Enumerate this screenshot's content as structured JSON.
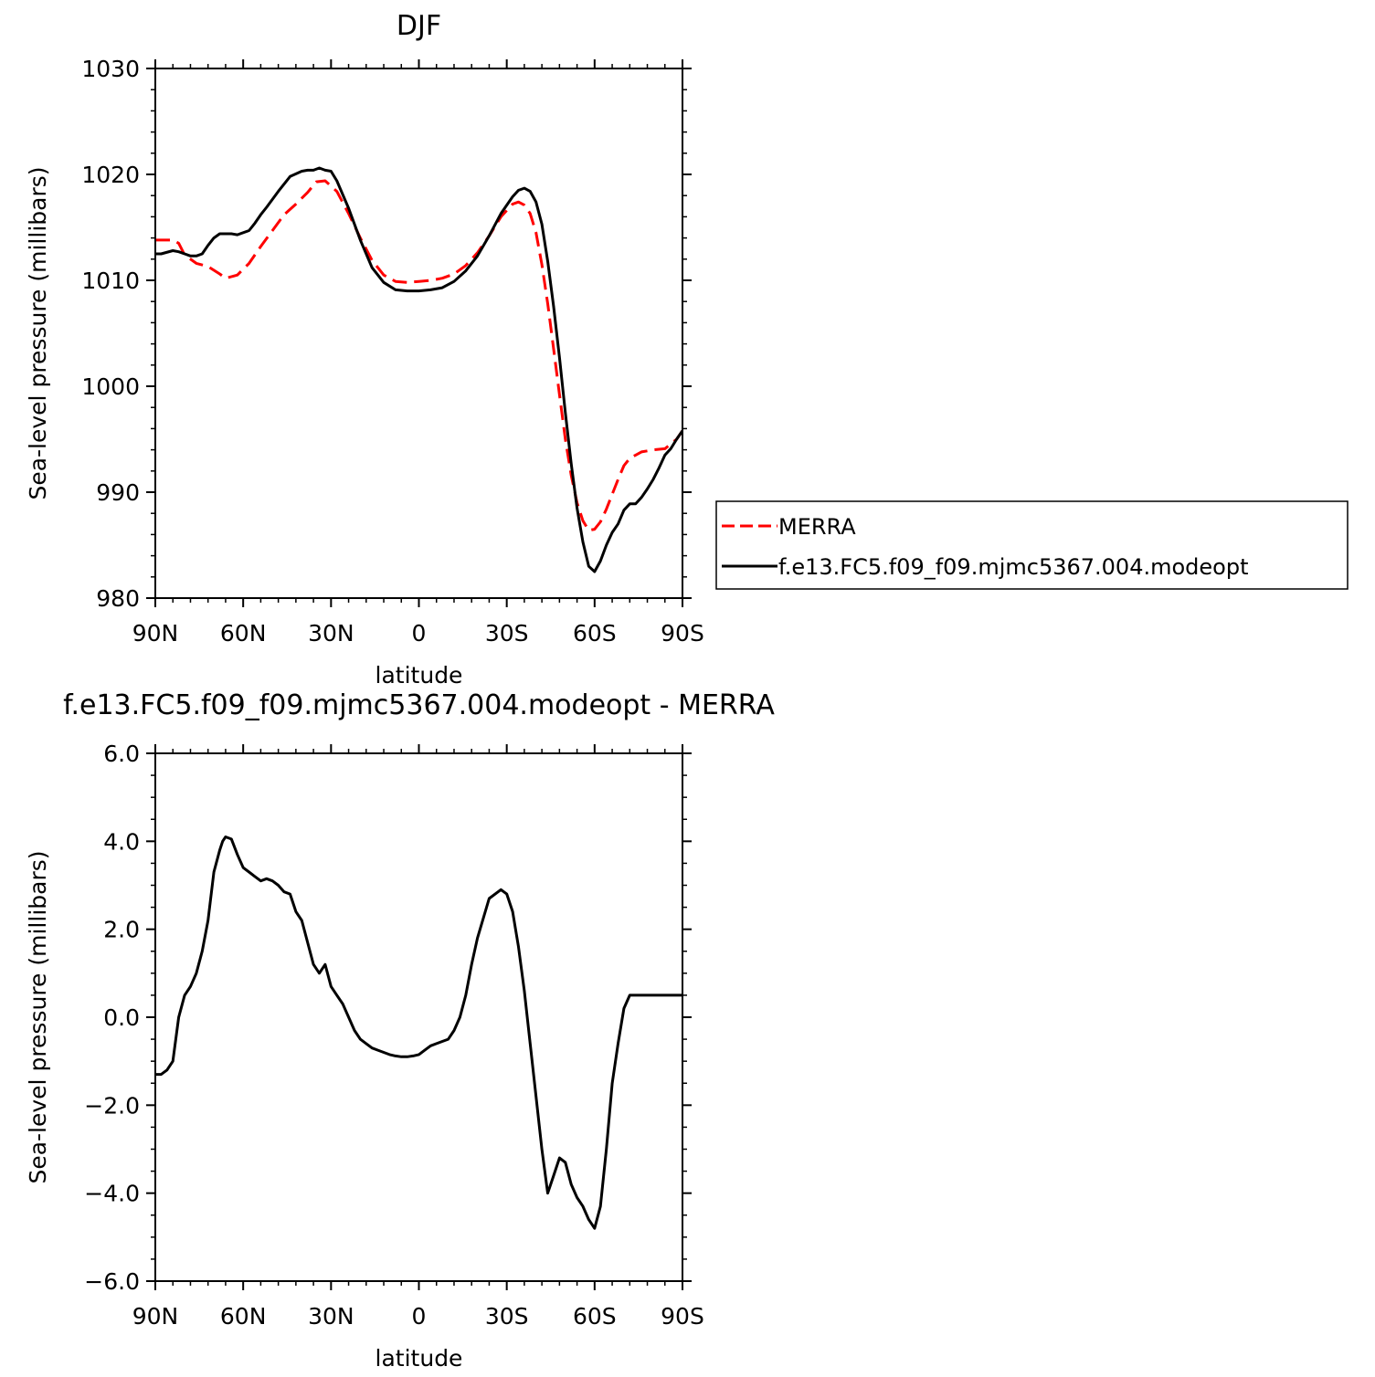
{
  "chart_data": [
    {
      "type": "line",
      "title": "DJF",
      "xlabel": "latitude",
      "ylabel": "Sea-level pressure (millibars)",
      "xlim": [
        90,
        -90
      ],
      "ylim": [
        980,
        1030
      ],
      "x_ticks": [
        90,
        60,
        30,
        0,
        -30,
        -60,
        -90
      ],
      "x_tick_labels": [
        "90N",
        "60N",
        "30N",
        "0",
        "30S",
        "60S",
        "90S"
      ],
      "y_ticks": [
        980,
        990,
        1000,
        1010,
        1020,
        1030
      ],
      "y_tick_labels": [
        "980",
        "990",
        "1000",
        "1010",
        "1020",
        "1030"
      ],
      "legend": "right",
      "series": [
        {
          "name": "MERRA",
          "color": "#ff0000",
          "dash": "dashed",
          "x": [
            90,
            84,
            82,
            80,
            76,
            72,
            68,
            66,
            62,
            58,
            54,
            50,
            46,
            42,
            38,
            35,
            32,
            28,
            24,
            20,
            16,
            12,
            8,
            4,
            0,
            -4,
            -8,
            -12,
            -16,
            -20,
            -24,
            -28,
            -32,
            -34,
            -36,
            -38,
            -40,
            -42,
            -44,
            -46,
            -48,
            -50,
            -52,
            -54,
            -56,
            -58,
            -60,
            -62,
            -64,
            -66,
            -68,
            -70,
            -72,
            -74,
            -76,
            -78,
            -80,
            -84,
            -88,
            -90
          ],
          "y": [
            1013.8,
            1013.8,
            1013.5,
            1012.4,
            1011.6,
            1011.3,
            1010.6,
            1010.2,
            1010.5,
            1011.6,
            1013.2,
            1014.7,
            1016.2,
            1017.2,
            1018.3,
            1019.3,
            1019.4,
            1018.4,
            1016.3,
            1014.0,
            1011.9,
            1010.5,
            1009.9,
            1009.8,
            1009.9,
            1010.0,
            1010.2,
            1010.6,
            1011.4,
            1012.6,
            1014.2,
            1016.0,
            1017.2,
            1017.4,
            1017.1,
            1016.3,
            1014.5,
            1011.5,
            1007.8,
            1003.5,
            999.2,
            995.0,
            991.6,
            989.0,
            987.3,
            986.4,
            986.5,
            987.2,
            988.4,
            989.8,
            991.2,
            992.5,
            993.2,
            993.5,
            993.8,
            993.9,
            994.0,
            994.1,
            995.0,
            995.8
          ]
        },
        {
          "name": "f.e13.FC5.f09_f09.mjmc5367.004.modeopt",
          "color": "#000000",
          "dash": "solid",
          "x": [
            90,
            88,
            84,
            82,
            80,
            78,
            76,
            74,
            72,
            70,
            68,
            66,
            64,
            62,
            58,
            56,
            54,
            52,
            48,
            44,
            40,
            38,
            36,
            34,
            32,
            30,
            28,
            24,
            20,
            16,
            12,
            8,
            4,
            2,
            0,
            -4,
            -8,
            -12,
            -16,
            -20,
            -24,
            -28,
            -32,
            -34,
            -36,
            -38,
            -40,
            -42,
            -44,
            -46,
            -48,
            -50,
            -52,
            -54,
            -56,
            -58,
            -60,
            -62,
            -64,
            -66,
            -68,
            -70,
            -72,
            -74,
            -76,
            -78,
            -80,
            -82,
            -84,
            -86,
            -88,
            -90
          ],
          "y": [
            1012.5,
            1012.5,
            1012.8,
            1012.7,
            1012.5,
            1012.3,
            1012.3,
            1012.5,
            1013.3,
            1014.0,
            1014.4,
            1014.4,
            1014.4,
            1014.3,
            1014.7,
            1015.4,
            1016.2,
            1016.9,
            1018.4,
            1019.8,
            1020.3,
            1020.4,
            1020.4,
            1020.6,
            1020.4,
            1020.3,
            1019.4,
            1016.8,
            1013.8,
            1011.2,
            1009.8,
            1009.1,
            1009.0,
            1009.0,
            1009.0,
            1009.1,
            1009.3,
            1009.9,
            1010.9,
            1012.3,
            1014.2,
            1016.3,
            1017.9,
            1018.5,
            1018.7,
            1018.4,
            1017.4,
            1015.3,
            1011.8,
            1007.5,
            1002.7,
            997.5,
            992.7,
            988.5,
            985.3,
            983.0,
            982.5,
            983.5,
            985.0,
            986.2,
            987.0,
            988.3,
            988.9,
            988.9,
            989.5,
            990.3,
            991.2,
            992.3,
            993.5,
            994.1,
            995.0,
            995.8
          ]
        }
      ]
    },
    {
      "type": "line",
      "title": "f.e13.FC5.f09_f09.mjmc5367.004.modeopt - MERRA",
      "xlabel": "latitude",
      "ylabel": "Sea-level pressure (millibars)",
      "xlim": [
        90,
        -90
      ],
      "ylim": [
        -6,
        6
      ],
      "x_ticks": [
        90,
        60,
        30,
        0,
        -30,
        -60,
        -90
      ],
      "x_tick_labels": [
        "90N",
        "60N",
        "30N",
        "0",
        "30S",
        "60S",
        "90S"
      ],
      "y_ticks": [
        -6,
        -4,
        -2,
        0,
        2,
        4,
        6
      ],
      "y_tick_labels": [
        "−6.0",
        "−4.0",
        "−2.0",
        "0.0",
        "2.0",
        "4.0",
        "6.0"
      ],
      "series": [
        {
          "color": "#000000",
          "dash": "solid",
          "x": [
            90,
            88,
            86,
            84,
            82,
            80,
            78,
            76,
            74,
            72,
            70,
            68,
            67,
            66,
            64,
            62,
            60,
            58,
            56,
            54,
            52,
            50,
            48,
            46,
            44,
            42,
            40,
            38,
            36,
            34,
            32,
            30,
            28,
            26,
            24,
            22,
            20,
            18,
            16,
            14,
            12,
            10,
            8,
            6,
            4,
            2,
            0,
            -2,
            -4,
            -6,
            -8,
            -10,
            -12,
            -14,
            -16,
            -18,
            -20,
            -24,
            -28,
            -30,
            -32,
            -34,
            -36,
            -38,
            -40,
            -42,
            -44,
            -46,
            -48,
            -50,
            -52,
            -54,
            -56,
            -58,
            -60,
            -62,
            -64,
            -66,
            -68,
            -70,
            -72,
            -74,
            -76,
            -77,
            -78,
            -80,
            -82,
            -84,
            -86,
            -88,
            -90
          ],
          "y": [
            -1.3,
            -1.3,
            -1.2,
            -1.0,
            0.0,
            0.5,
            0.7,
            1.0,
            1.5,
            2.2,
            3.3,
            3.8,
            4.0,
            4.1,
            4.05,
            3.7,
            3.4,
            3.3,
            3.2,
            3.1,
            3.15,
            3.1,
            3.0,
            2.85,
            2.8,
            2.4,
            2.2,
            1.7,
            1.2,
            1.0,
            1.2,
            0.7,
            0.5,
            0.3,
            0.0,
            -0.3,
            -0.5,
            -0.6,
            -0.7,
            -0.75,
            -0.8,
            -0.85,
            -0.88,
            -0.9,
            -0.9,
            -0.88,
            -0.85,
            -0.75,
            -0.65,
            -0.6,
            -0.55,
            -0.5,
            -0.3,
            0.0,
            0.5,
            1.2,
            1.8,
            2.7,
            2.9,
            2.8,
            2.4,
            1.6,
            0.6,
            -0.6,
            -1.8,
            -3.0,
            -4.0,
            -3.6,
            -3.2,
            -3.3,
            -3.8,
            -4.1,
            -4.3,
            -4.6,
            -4.8,
            -4.3,
            -3.0,
            -1.5,
            -0.6,
            0.2,
            0.5,
            0.5,
            0.5,
            0.5,
            0.5,
            0.5,
            0.5,
            0.5,
            0.5,
            0.5,
            0.5
          ]
        }
      ]
    }
  ]
}
